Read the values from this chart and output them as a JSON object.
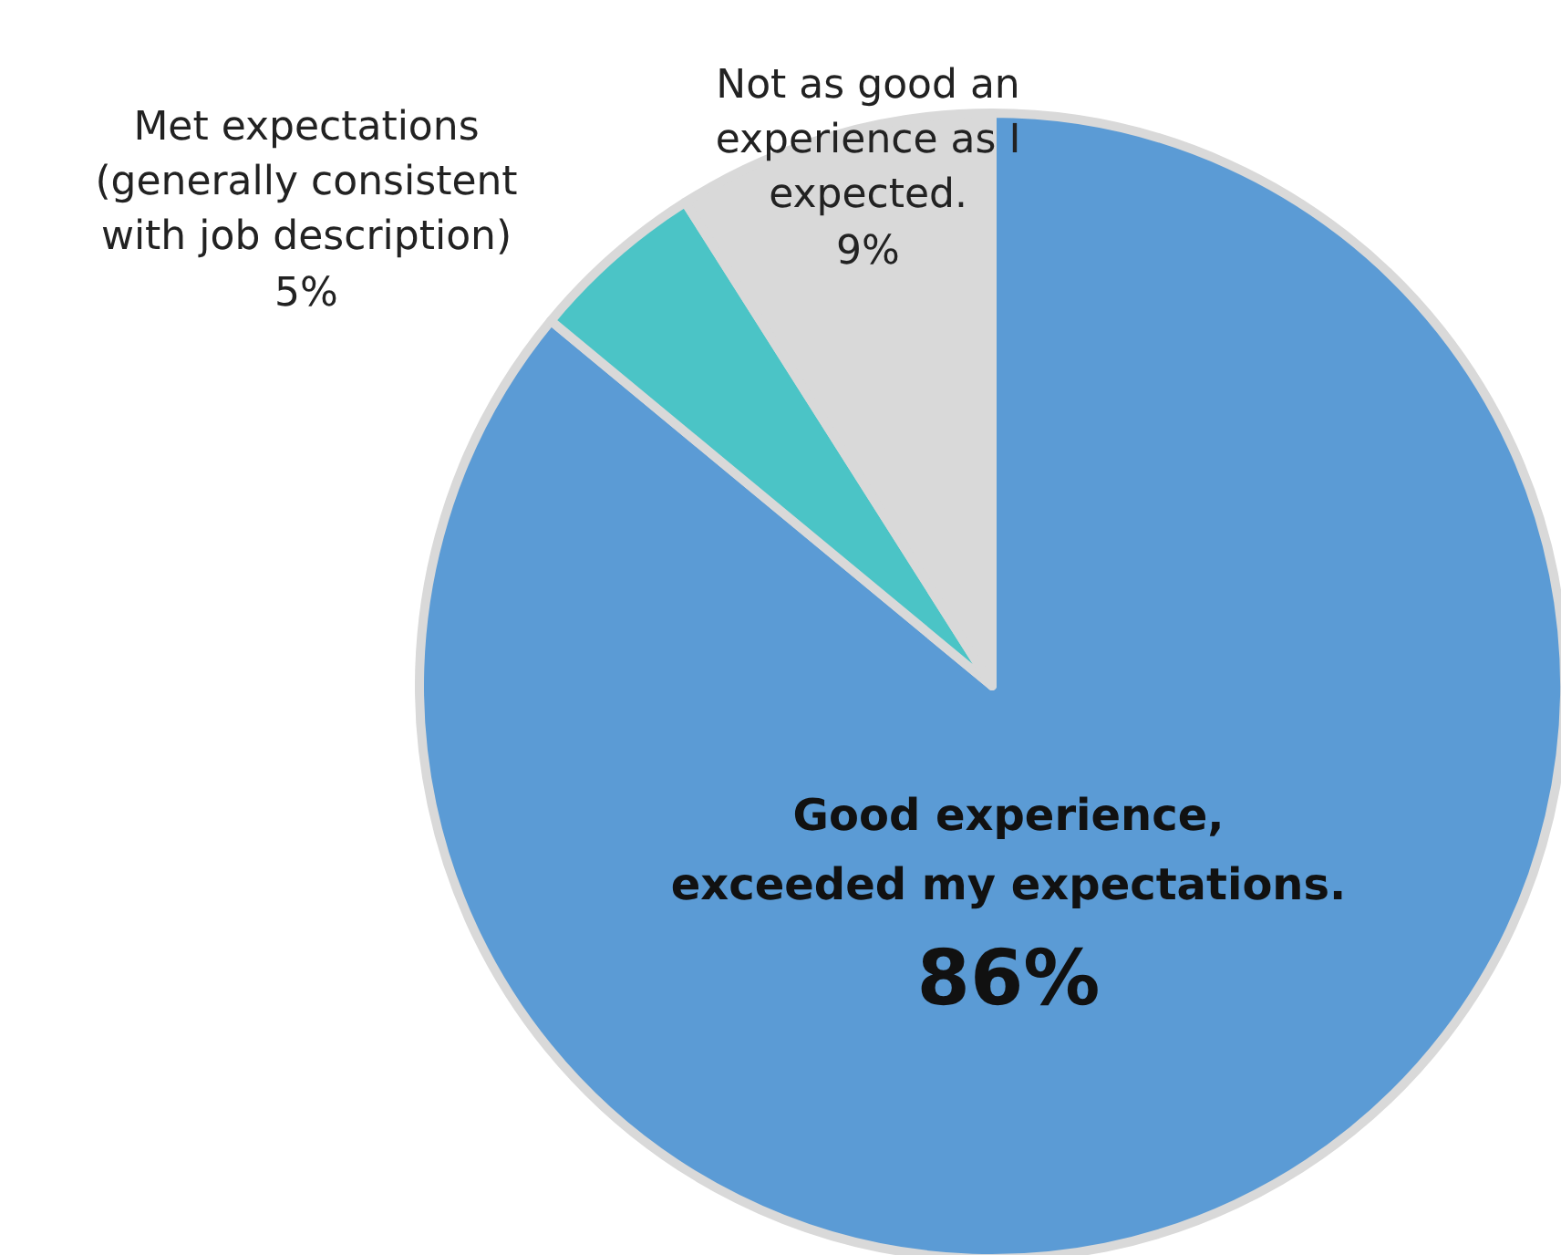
{
  "chart_data": {
    "type": "pie",
    "categories": [
      "Good experience,\nexceeded my expectations.",
      "Met expectations\n(generally consistent\nwith job description)",
      "Not as good an\nexperience as I\nexpected."
    ],
    "values": [
      86,
      5,
      9
    ],
    "value_labels": [
      "86%",
      "5%",
      "9%"
    ],
    "colors": [
      "#5b9bd5",
      "#4bc4c6",
      "#d9d9d9"
    ]
  }
}
